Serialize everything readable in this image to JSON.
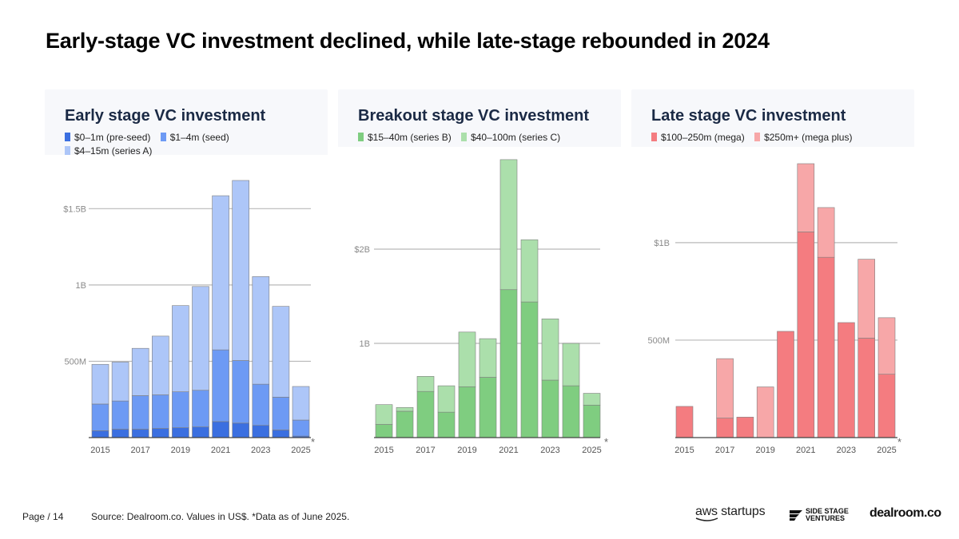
{
  "title": "Early-stage VC investment declined, while late-stage rebounded in 2024",
  "chart_data": [
    {
      "type": "bar",
      "stacked": true,
      "title": "Early stage VC investment",
      "categories": [
        "2015",
        "2016",
        "2017",
        "2018",
        "2019",
        "2020",
        "2021",
        "2022",
        "2023",
        "2024",
        "2025"
      ],
      "x_tick_labels": [
        "2015",
        "2017",
        "2019",
        "2021",
        "2023",
        "2025"
      ],
      "y_ticks": [
        500,
        1000,
        1500
      ],
      "y_tick_labels": [
        "500M",
        "1B",
        "$1.5B"
      ],
      "ylim": [
        0,
        1800
      ],
      "unit": "US$ millions",
      "note": "*",
      "series": [
        {
          "name": "$0–1m (pre-seed)",
          "color": "#3b6fe0",
          "values": [
            45,
            55,
            55,
            60,
            65,
            70,
            105,
            95,
            80,
            50,
            10
          ]
        },
        {
          "name": "$1–4m (seed)",
          "color": "#6d9af4",
          "values": [
            175,
            185,
            220,
            220,
            235,
            240,
            470,
            410,
            270,
            215,
            105
          ]
        },
        {
          "name": "$4–15m (series A)",
          "color": "#adc6f8",
          "values": [
            260,
            255,
            310,
            385,
            565,
            680,
            1010,
            1180,
            705,
            595,
            220
          ]
        }
      ]
    },
    {
      "type": "bar",
      "stacked": true,
      "title": "Breakout stage VC investment",
      "categories": [
        "2015",
        "2016",
        "2017",
        "2018",
        "2019",
        "2020",
        "2021",
        "2022",
        "2023",
        "2024",
        "2025"
      ],
      "x_tick_labels": [
        "2015",
        "2017",
        "2019",
        "2021",
        "2023",
        "2025"
      ],
      "y_ticks": [
        1000,
        2000
      ],
      "y_tick_labels": [
        "1B",
        "$2B"
      ],
      "ylim": [
        0,
        3000
      ],
      "unit": "US$ millions",
      "note": "*",
      "series": [
        {
          "name": "$15–40m (series B)",
          "color": "#7fcd80",
          "values": [
            140,
            280,
            490,
            270,
            540,
            640,
            1570,
            1440,
            610,
            550,
            345
          ]
        },
        {
          "name": "$40–100m (series C)",
          "color": "#abdfab",
          "values": [
            210,
            40,
            160,
            280,
            580,
            410,
            1380,
            660,
            650,
            450,
            125
          ]
        }
      ]
    },
    {
      "type": "bar",
      "stacked": true,
      "title": "Late stage VC investment",
      "categories": [
        "2015",
        "2016",
        "2017",
        "2018",
        "2019",
        "2020",
        "2021",
        "2022",
        "2023",
        "2024",
        "2025"
      ],
      "x_tick_labels": [
        "2015",
        "2017",
        "2019",
        "2021",
        "2023",
        "2025"
      ],
      "y_ticks": [
        500,
        1000
      ],
      "y_tick_labels": [
        "500M",
        "$1B"
      ],
      "ylim": [
        0,
        1450
      ],
      "unit": "US$ millions",
      "note": "*",
      "series": [
        {
          "name": "$100–250m (mega)",
          "color": "#f47c80",
          "values": [
            160,
            0,
            100,
            105,
            0,
            545,
            1055,
            925,
            590,
            510,
            325
          ]
        },
        {
          "name": "$250m+ (mega plus)",
          "color": "#f7a7a8",
          "values": [
            0,
            0,
            305,
            0,
            260,
            0,
            350,
            255,
            0,
            405,
            290
          ]
        }
      ]
    }
  ],
  "footer": {
    "page": "Page / 14",
    "source": "Source:  Dealroom.co. Values in US$. *Data as of June 2025."
  },
  "logos": {
    "aws": "aws startups",
    "ssv_line1": "SIDE STAGE",
    "ssv_line2": "VENTURES",
    "dealroom": "dealroom.co"
  }
}
